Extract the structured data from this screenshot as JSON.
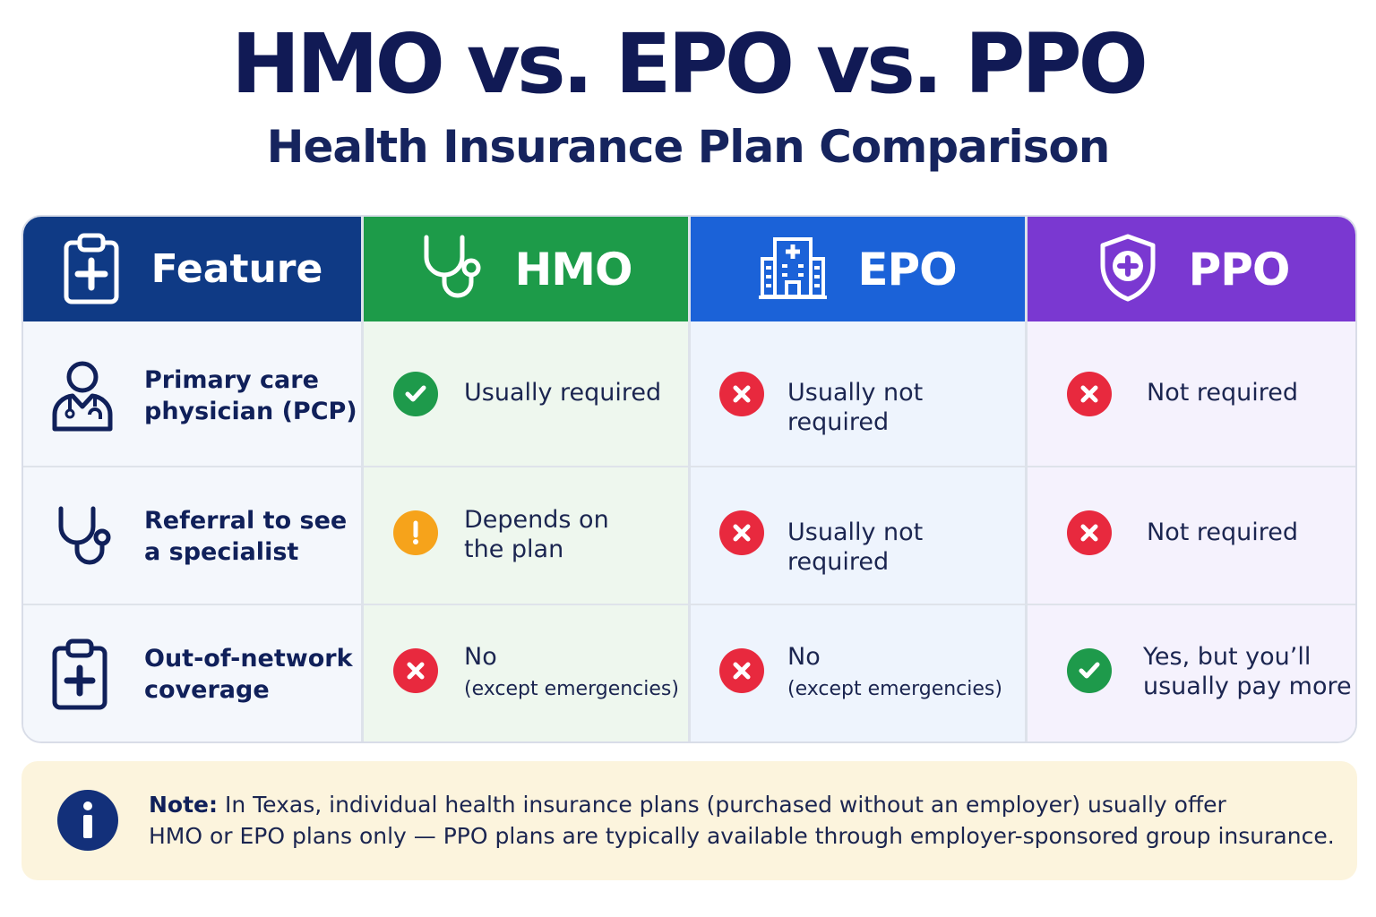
{
  "title": "HMO vs. EPO vs. PPO",
  "subtitle": "Health Insurance Plan Comparison",
  "colors": {
    "feature": "#0f3a85",
    "hmo": "#1d9b49",
    "epo": "#1b62d8",
    "ppo": "#7a38d1",
    "check": "#1e9a4b",
    "cross": "#e8293e",
    "warn": "#f6a31b",
    "note_bg": "#fcf4dd"
  },
  "headers": [
    {
      "label": "Feature",
      "icon": "clipboard-medical-icon"
    },
    {
      "label": "HMO",
      "icon": "stethoscope-icon"
    },
    {
      "label": "EPO",
      "icon": "hospital-building-icon"
    },
    {
      "label": "PPO",
      "icon": "shield-cross-icon"
    }
  ],
  "rows": [
    {
      "feature": "Primary care\nphysician (PCP)",
      "icon": "doctor-icon",
      "hmo": {
        "status": "check",
        "text": "Usually required"
      },
      "epo": {
        "status": "cross",
        "text": "Usually not required"
      },
      "ppo": {
        "status": "cross",
        "text": "Not required"
      }
    },
    {
      "feature": "Referral to see\na specialist",
      "icon": "stethoscope-icon",
      "hmo": {
        "status": "warning",
        "text": "Depends on\nthe plan"
      },
      "epo": {
        "status": "cross",
        "text": "Usually not required"
      },
      "ppo": {
        "status": "cross",
        "text": "Not required"
      }
    },
    {
      "feature": "Out-of-network\ncoverage",
      "icon": "clipboard-medical-icon",
      "hmo": {
        "status": "cross",
        "text": "No",
        "sub": "(except emergencies)"
      },
      "epo": {
        "status": "cross",
        "text": "No",
        "sub": "(except emergencies)"
      },
      "ppo": {
        "status": "check",
        "text": "Yes, but you’ll\nusually pay more"
      }
    }
  ],
  "note": {
    "label": "Note:",
    "line1": " In Texas, individual health insurance plans (purchased without an employer) usually offer",
    "line2": "HMO or EPO plans only — PPO plans are typically available through employer-sponsored group insurance."
  }
}
